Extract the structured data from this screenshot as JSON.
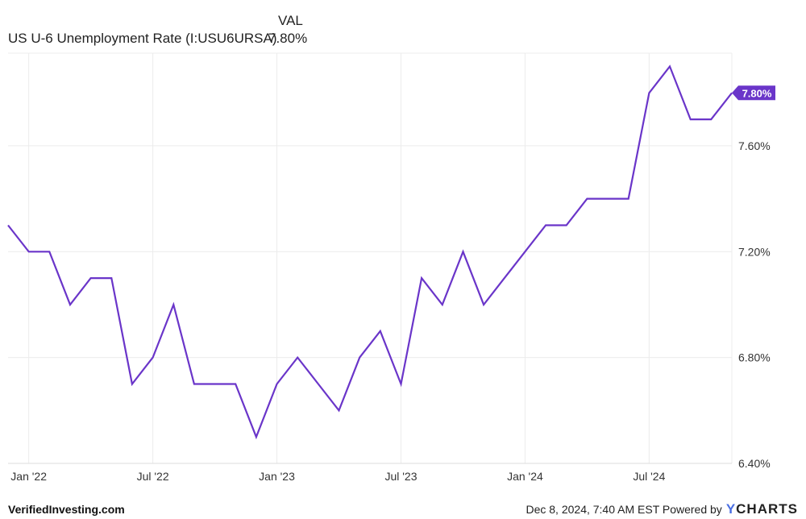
{
  "legend": {
    "header": "VAL",
    "series_name": "US U-6 Unemployment Rate (I:USU6URSA)",
    "series_value": "7.80%"
  },
  "footer": {
    "source": "VerifiedInvesting.com",
    "timestamp": "Dec 8, 2024, 7:40 AM EST Powered by",
    "logo_y": "Y",
    "logo_rest": "CHARTS"
  },
  "colors": {
    "line": "#6a35c9",
    "grid": "#ececec",
    "text": "#222222"
  },
  "chart_data": {
    "type": "line",
    "title": "",
    "xlabel": "",
    "ylabel": "",
    "ylim": [
      6.4,
      7.95
    ],
    "y_ticks": [
      6.4,
      6.8,
      7.2,
      7.6
    ],
    "y_tick_labels": [
      "6.40%",
      "6.80%",
      "7.20%",
      "7.60%"
    ],
    "x_ticks": [
      "2022-01",
      "2022-07",
      "2023-01",
      "2023-07",
      "2024-01",
      "2024-07"
    ],
    "x_tick_labels": [
      "Jan '22",
      "Jul '22",
      "Jan '23",
      "Jul '23",
      "Jan '24",
      "Jul '24"
    ],
    "grid": true,
    "last_value_label": "7.80%",
    "series": [
      {
        "name": "US U-6 Unemployment Rate (I:USU6URSA)",
        "x": [
          "2021-12",
          "2022-01",
          "2022-02",
          "2022-03",
          "2022-04",
          "2022-05",
          "2022-06",
          "2022-07",
          "2022-08",
          "2022-09",
          "2022-10",
          "2022-11",
          "2022-12",
          "2023-01",
          "2023-02",
          "2023-03",
          "2023-04",
          "2023-05",
          "2023-06",
          "2023-07",
          "2023-08",
          "2023-09",
          "2023-10",
          "2023-11",
          "2023-12",
          "2024-01",
          "2024-02",
          "2024-03",
          "2024-04",
          "2024-05",
          "2024-06",
          "2024-07",
          "2024-08",
          "2024-09",
          "2024-10",
          "2024-11"
        ],
        "values": [
          7.3,
          7.2,
          7.2,
          7.0,
          7.1,
          7.1,
          6.7,
          6.8,
          7.0,
          6.7,
          6.7,
          6.7,
          6.5,
          6.7,
          6.8,
          6.7,
          6.6,
          6.8,
          6.9,
          6.7,
          7.1,
          7.0,
          7.2,
          7.0,
          7.1,
          7.2,
          7.3,
          7.3,
          7.4,
          7.4,
          7.4,
          7.8,
          7.9,
          7.7,
          7.7,
          7.8
        ]
      }
    ]
  }
}
